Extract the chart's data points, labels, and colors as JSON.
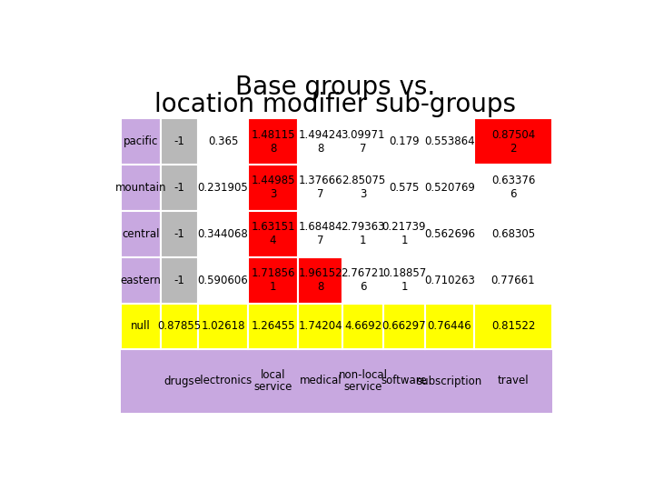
{
  "title_line1": "Base groups vs.",
  "title_line2": "location modifier sub-groups",
  "rows": [
    "pacific",
    "mountain",
    "central",
    "eastern",
    "null"
  ],
  "col_labels_line1": [
    "drugs",
    "electronics",
    "local",
    "medical",
    "non-local",
    "software",
    "subscription",
    "travel"
  ],
  "col_labels_line2": [
    "",
    "",
    "service",
    "",
    "service",
    "",
    "",
    ""
  ],
  "fixed_col1": [
    "-1",
    "-1",
    "-1",
    "-1",
    null
  ],
  "fixed_col2": [
    "0.365",
    "0.231905",
    "0.344068",
    "0.590606",
    null
  ],
  "row_vals": [
    [
      "1.48115\n8",
      "1.49424\n8",
      "3.09971\n7",
      "0.179",
      "0.553864",
      "0.87504\n2"
    ],
    [
      "1.44985\n3",
      "1.37666\n7",
      "2.85075\n3",
      "0.575",
      "0.520769",
      "0.63376\n6"
    ],
    [
      "1.63151\n4",
      "1.68484\n7",
      "2.79363\n1",
      "0.21739\n1",
      "0.562696",
      "0.68305"
    ],
    [
      "1.71856\n1",
      "1.96152\n8",
      "2.76721\n6",
      "0.18857\n1",
      "0.710263",
      "0.77661"
    ]
  ],
  "null_vals": [
    "0.87855",
    "1.02618",
    "1.26455",
    "1.74204",
    "4.6692",
    "0.66297",
    "0.76446",
    "0.81522"
  ],
  "red_cells_rows04": [
    [
      0,
      0
    ],
    [
      1,
      0
    ],
    [
      2,
      0
    ],
    [
      3,
      0
    ],
    [
      3,
      1
    ],
    [
      0,
      5
    ]
  ],
  "purple_bg": "#c8a8e0",
  "gray_bg": "#b8b8b8",
  "yellow_bg": "#ffff00",
  "red_bg": "#ff0000",
  "white_bg": "#ffffff",
  "title_fontsize": 20,
  "cell_fontsize": 8.5
}
